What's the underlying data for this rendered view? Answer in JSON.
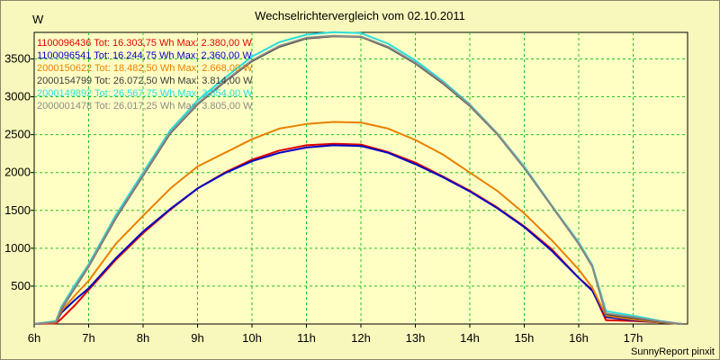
{
  "footer": "SunnyReport pinxit",
  "chart_data": {
    "type": "line",
    "title": "Wechselrichtervergleich vom 02.10.2011",
    "ylabel": "W",
    "xlabel": "",
    "xlim": [
      6,
      18
    ],
    "ylim": [
      0,
      3850
    ],
    "x_ticks": [
      {
        "v": 6,
        "label": "6h"
      },
      {
        "v": 7,
        "label": "7h"
      },
      {
        "v": 8,
        "label": "8h"
      },
      {
        "v": 9,
        "label": "9h"
      },
      {
        "v": 10,
        "label": "10h"
      },
      {
        "v": 11,
        "label": "11h"
      },
      {
        "v": 12,
        "label": "12h"
      },
      {
        "v": 13,
        "label": "13h"
      },
      {
        "v": 14,
        "label": "14h"
      },
      {
        "v": 15,
        "label": "15h"
      },
      {
        "v": 16,
        "label": "16h"
      },
      {
        "v": 17,
        "label": "17h"
      }
    ],
    "y_ticks": [
      {
        "v": 500,
        "label": "500"
      },
      {
        "v": 1000,
        "label": "1000"
      },
      {
        "v": 1500,
        "label": "1500"
      },
      {
        "v": 2000,
        "label": "2000"
      },
      {
        "v": 2500,
        "label": "2500"
      },
      {
        "v": 3000,
        "label": "3000"
      },
      {
        "v": 3500,
        "label": "3500"
      }
    ],
    "grid": true,
    "legend_position": "top-left",
    "series": [
      {
        "legend": "1100096436 Tot: 16.303,75 Wh Max: 2.380,00 W",
        "color": "#e00000",
        "x": [
          6,
          6.4,
          6.5,
          6.75,
          7,
          7.5,
          8,
          8.5,
          9,
          9.5,
          10,
          10.5,
          11,
          11.5,
          12,
          12.5,
          13,
          13.5,
          14,
          14.5,
          15,
          15.5,
          16,
          16.25,
          16.5,
          17,
          17.5,
          17.9
        ],
        "y": [
          0,
          10,
          70,
          250,
          450,
          850,
          1200,
          1510,
          1790,
          2000,
          2170,
          2290,
          2360,
          2380,
          2370,
          2270,
          2130,
          1950,
          1760,
          1540,
          1290,
          990,
          610,
          450,
          50,
          40,
          20,
          0
        ]
      },
      {
        "legend": "1100096541 Tot: 16.244,75 Wh Max: 2.360,00 W",
        "color": "#0000c8",
        "x": [
          6,
          6.4,
          6.5,
          6.75,
          7,
          7.5,
          8,
          8.5,
          9,
          9.5,
          10,
          10.5,
          11,
          11.5,
          12,
          12.5,
          13,
          13.5,
          14,
          14.5,
          15,
          15.5,
          16,
          16.25,
          16.5,
          17,
          17.5,
          17.9
        ],
        "y": [
          0,
          20,
          150,
          320,
          470,
          870,
          1220,
          1520,
          1790,
          1990,
          2150,
          2260,
          2330,
          2360,
          2350,
          2260,
          2110,
          1940,
          1750,
          1530,
          1280,
          970,
          610,
          440,
          90,
          50,
          20,
          0
        ]
      },
      {
        "legend": "2000150622 Tot: 18.482,50 Wh Max: 2.668,00 W",
        "color": "#e88000",
        "x": [
          6,
          6.4,
          6.5,
          6.75,
          7,
          7.5,
          8,
          8.5,
          9,
          9.5,
          10,
          10.5,
          11,
          11.5,
          12,
          12.5,
          13,
          13.5,
          14,
          14.5,
          15,
          15.5,
          16,
          16.25,
          16.5,
          17,
          17.5,
          17.9
        ],
        "y": [
          0,
          20,
          170,
          380,
          570,
          1060,
          1430,
          1790,
          2080,
          2260,
          2440,
          2580,
          2640,
          2668,
          2660,
          2580,
          2430,
          2240,
          2000,
          1760,
          1460,
          1110,
          720,
          480,
          110,
          60,
          20,
          0
        ]
      },
      {
        "legend": "2000154799 Tot: 26.072,50 Wh Max: 3.814,00 W",
        "color": "#3a3a3a",
        "x": [
          6,
          6.4,
          6.5,
          6.75,
          7,
          7.5,
          8,
          8.5,
          9,
          9.5,
          10,
          10.5,
          11,
          11.5,
          12,
          12.5,
          13,
          13.5,
          14,
          14.5,
          15,
          15.5,
          16,
          16.25,
          16.5,
          17,
          17.5,
          17.9
        ],
        "y": [
          0,
          30,
          200,
          480,
          760,
          1400,
          1960,
          2520,
          2900,
          3200,
          3470,
          3660,
          3770,
          3800,
          3790,
          3650,
          3440,
          3180,
          2880,
          2510,
          2060,
          1560,
          1060,
          760,
          130,
          80,
          30,
          0
        ]
      },
      {
        "legend": "2000149892 Tot: 26.567,75 Wh Max: 3.854,00 W",
        "color": "#28dede",
        "x": [
          6,
          6.4,
          6.5,
          6.75,
          7,
          7.5,
          8,
          8.5,
          9,
          9.5,
          10,
          10.5,
          11,
          11.5,
          12,
          12.5,
          13,
          13.5,
          14,
          14.5,
          15,
          15.5,
          16,
          16.25,
          16.5,
          17,
          17.5,
          17.9
        ],
        "y": [
          0,
          40,
          230,
          520,
          790,
          1440,
          2000,
          2560,
          2950,
          3250,
          3530,
          3720,
          3820,
          3854,
          3840,
          3700,
          3480,
          3210,
          2900,
          2520,
          2080,
          1570,
          1080,
          780,
          170,
          110,
          40,
          0
        ]
      },
      {
        "legend": "2000001478 Tot: 26.017,25 Wh Max: 3.805,00 W",
        "color": "#8a8a8a",
        "x": [
          6,
          6.4,
          6.5,
          6.75,
          7,
          7.5,
          8,
          8.5,
          9,
          9.5,
          10,
          10.5,
          11,
          11.5,
          12,
          12.5,
          13,
          13.5,
          14,
          14.5,
          15,
          15.5,
          16,
          16.25,
          16.5,
          17,
          17.5,
          17.9
        ],
        "y": [
          0,
          30,
          210,
          490,
          770,
          1410,
          1970,
          2530,
          2910,
          3210,
          3480,
          3670,
          3780,
          3805,
          3795,
          3660,
          3450,
          3190,
          2890,
          2515,
          2065,
          1565,
          1065,
          765,
          140,
          90,
          35,
          0
        ]
      }
    ]
  }
}
